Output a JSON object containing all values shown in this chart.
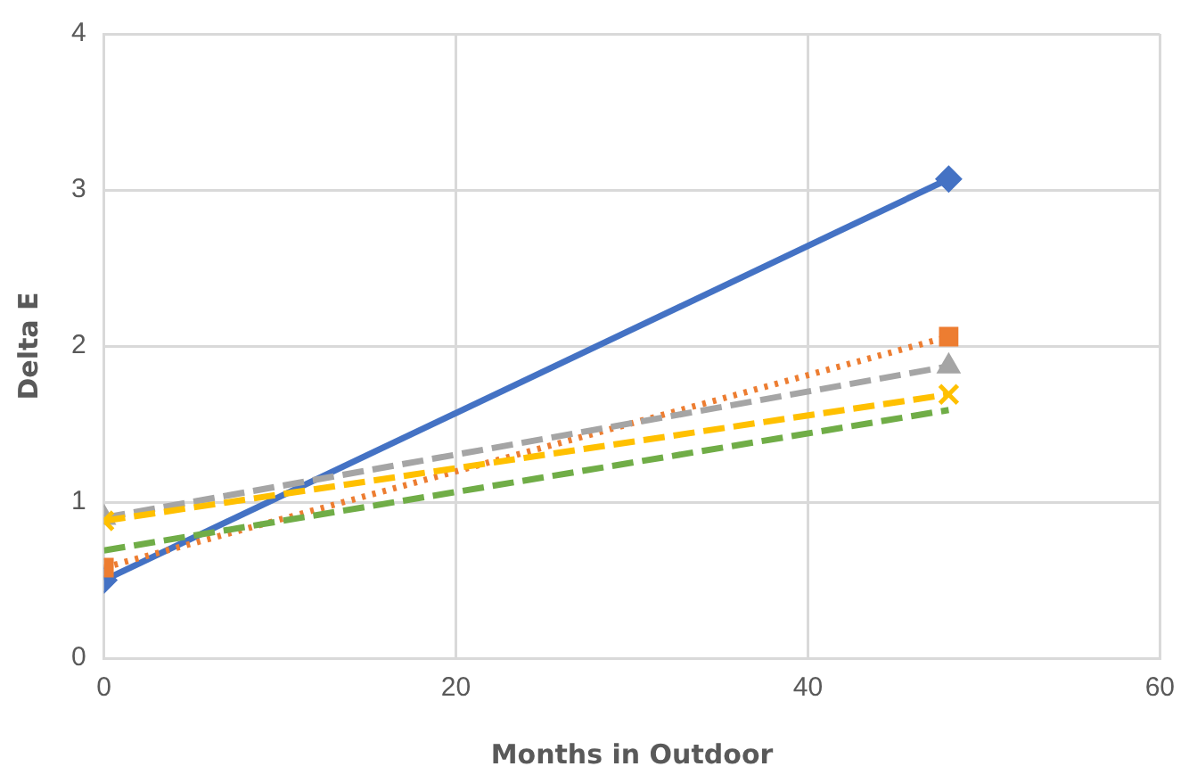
{
  "chart_data": {
    "type": "line",
    "xlabel": "Months in Outdoor",
    "ylabel": "Delta E",
    "xlim": [
      0,
      60
    ],
    "xticks": [
      0,
      20,
      40,
      60
    ],
    "ylim": [
      0,
      4
    ],
    "yticks": [
      0,
      1,
      2,
      3,
      4
    ],
    "grid": true,
    "legend": false,
    "x": [
      0,
      48
    ],
    "series": [
      {
        "color": "#4472c4",
        "values": [
          0.5,
          3.07
        ],
        "marker": "diamond",
        "line_style": "solid"
      },
      {
        "color": "#ed7d31",
        "values": [
          0.58,
          2.06
        ],
        "marker": "square",
        "line_style": "dotted"
      },
      {
        "color": "#a5a5a5",
        "values": [
          0.9,
          1.87
        ],
        "marker": "triangle",
        "line_style": "dashed"
      },
      {
        "color": "#ffc000",
        "values": [
          0.88,
          1.69
        ],
        "marker": "cross",
        "line_style": "dashed"
      },
      {
        "color": "#70ad47",
        "values": [
          0.69,
          1.59
        ],
        "marker": "none",
        "line_style": "dashed"
      }
    ]
  }
}
